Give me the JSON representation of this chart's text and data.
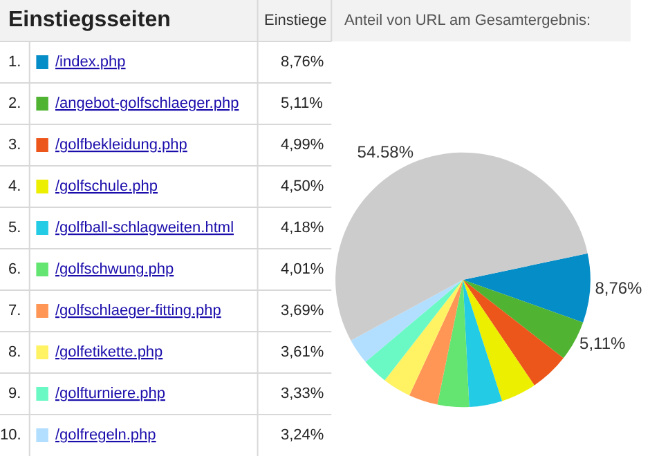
{
  "chart_data": {
    "type": "pie",
    "title": "Einstiegsseiten",
    "subtitle": "Anteil von URL am Gesamtergebnis:",
    "annotations": [
      "Einstiege",
      "1.",
      "2.",
      "3.",
      "4.",
      "5.",
      "6.",
      "7.",
      "8.",
      "9.",
      "10."
    ],
    "categories": [
      "/index.php",
      "/angebot-golfschlaeger.php",
      "/golfbekleidung.php",
      "/golfschule.php",
      "/golfball-schlagweiten.html",
      "/golfschwung.php",
      "/golfschlaeger-fitting.php",
      "/golfetikette.php",
      "/golfturniere.php",
      "/golfregeln.php",
      null
    ],
    "values": [
      8.76,
      5.11,
      4.99,
      4.5,
      4.18,
      4.01,
      3.69,
      3.61,
      3.33,
      3.24,
      54.58
    ],
    "colors": [
      "#058dc7",
      "#50b432",
      "#ed561b",
      "#edef00",
      "#24cbe5",
      "#64e572",
      "#ff9655",
      "#fff263",
      "#6af9c4",
      "#b2deff",
      "#cccccc"
    ],
    "value_labels": [
      "8,76%",
      "5,11%",
      "4,99%",
      "4,50%",
      "4,18%",
      "4,01%",
      "3,69%",
      "3,61%",
      "3,33%",
      "3,24%",
      "54.58%"
    ],
    "legend": "left"
  }
}
